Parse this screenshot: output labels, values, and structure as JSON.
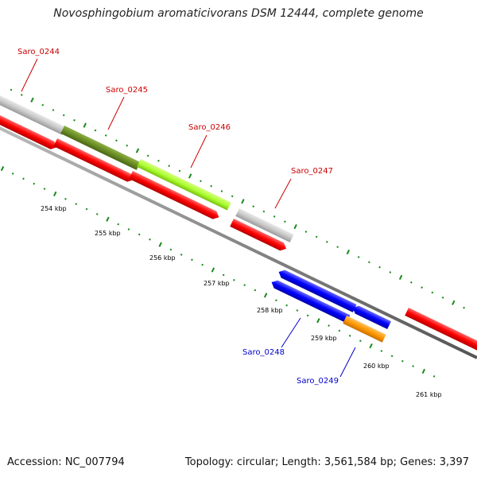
{
  "title": "Novosphingobium aromaticivorans DSM 12444, complete genome",
  "accession_text": "Accession: NC_007794",
  "summary_text": "Topology: circular; Length: 3,561,584 bp; Genes: 3,397",
  "ticks": [
    {
      "label": "254 kbp"
    },
    {
      "label": "255 kbp"
    },
    {
      "label": "256 kbp"
    },
    {
      "label": "257 kbp"
    },
    {
      "label": "258 kbp"
    },
    {
      "label": "259 kbp"
    },
    {
      "label": "260 kbp"
    },
    {
      "label": "261 kbp"
    }
  ],
  "genes": [
    {
      "label": "Saro_0244",
      "color": "#cc0000",
      "strand": "forward"
    },
    {
      "label": "Saro_0245",
      "color": "#cc0000",
      "strand": "forward"
    },
    {
      "label": "Saro_0246",
      "color": "#cc0000",
      "strand": "forward"
    },
    {
      "label": "Saro_0247",
      "color": "#cc0000",
      "strand": "forward"
    },
    {
      "label": "Saro_0248",
      "color": "#0000cc",
      "strand": "reverse"
    },
    {
      "label": "Saro_0249",
      "color": "#0000cc",
      "strand": "reverse"
    }
  ],
  "colors": {
    "cds_forward": "#ff0000",
    "cds_reverse": "#0000ff",
    "gray_feature": "#c8c8c8",
    "olive_feature": "#6b8e23",
    "lime_feature": "#adff2f",
    "orange_feature": "#ff9900",
    "backbone": "#888888",
    "tick": "#1a8a1a"
  }
}
